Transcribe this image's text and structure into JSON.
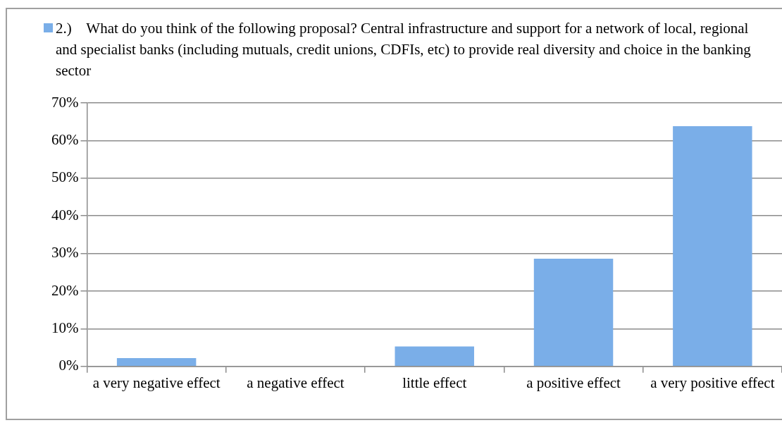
{
  "chart_data": {
    "type": "bar",
    "categories": [
      "a very negative effect",
      "a negative effect",
      "little effect",
      "a positive effect",
      "a very positive effect"
    ],
    "series": [
      {
        "name": "2.)    What do you think of the following proposal? Central infrastructure and support for a network of local, regional and specialist banks (including mutuals, credit unions, CDFIs, etc) to provide real diversity and choice in the banking sector",
        "color": "#7aaee8",
        "values": [
          2.2,
          0,
          5.3,
          28.6,
          63.8
        ]
      }
    ],
    "ylim": [
      0,
      70
    ],
    "yticks": [
      {
        "value": 0,
        "label": "0%"
      },
      {
        "value": 10,
        "label": "10%"
      },
      {
        "value": 20,
        "label": "20%"
      },
      {
        "value": 30,
        "label": "30%"
      },
      {
        "value": 40,
        "label": "40%"
      },
      {
        "value": 50,
        "label": "50%"
      },
      {
        "value": 60,
        "label": "60%"
      },
      {
        "value": 70,
        "label": "70%"
      }
    ],
    "grid": "y",
    "legend": "top"
  }
}
